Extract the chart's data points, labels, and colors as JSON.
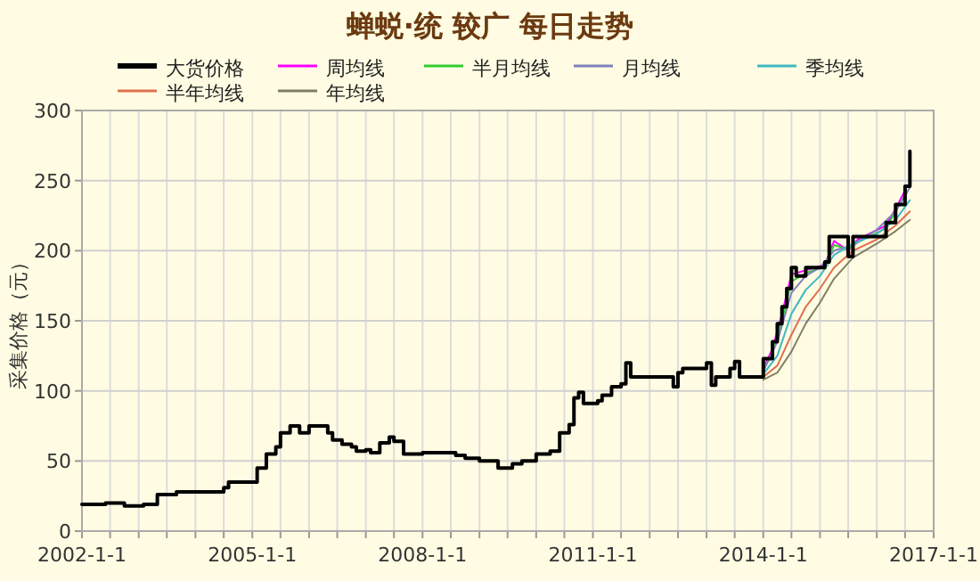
{
  "chart_data": {
    "type": "line",
    "title": "蝉蜕·统 较广 每日走势",
    "ylabel": "采集价格（元）",
    "xlim": [
      "2002-01-01",
      "2017-01-01"
    ],
    "xticks": [
      {
        "value": "2002-01-01",
        "label": "2002-1-1"
      },
      {
        "value": "2002-07-01",
        "label": null
      },
      {
        "value": "2003-01-01",
        "label": null
      },
      {
        "value": "2003-07-01",
        "label": null
      },
      {
        "value": "2004-01-01",
        "label": null
      },
      {
        "value": "2004-07-01",
        "label": null
      },
      {
        "value": "2005-01-01",
        "label": "2005-1-1"
      },
      {
        "value": "2005-07-01",
        "label": null
      },
      {
        "value": "2006-01-01",
        "label": null
      },
      {
        "value": "2006-07-01",
        "label": null
      },
      {
        "value": "2007-01-01",
        "label": null
      },
      {
        "value": "2007-07-01",
        "label": null
      },
      {
        "value": "2008-01-01",
        "label": "2008-1-1"
      },
      {
        "value": "2008-07-01",
        "label": null
      },
      {
        "value": "2009-01-01",
        "label": null
      },
      {
        "value": "2009-07-01",
        "label": null
      },
      {
        "value": "2010-01-01",
        "label": null
      },
      {
        "value": "2010-07-01",
        "label": null
      },
      {
        "value": "2011-01-01",
        "label": "2011-1-1"
      },
      {
        "value": "2011-07-01",
        "label": null
      },
      {
        "value": "2012-01-01",
        "label": null
      },
      {
        "value": "2012-07-01",
        "label": null
      },
      {
        "value": "2013-01-01",
        "label": null
      },
      {
        "value": "2013-07-01",
        "label": null
      },
      {
        "value": "2014-01-01",
        "label": "2014-1-1"
      },
      {
        "value": "2014-07-01",
        "label": null
      },
      {
        "value": "2015-01-01",
        "label": null
      },
      {
        "value": "2015-07-01",
        "label": null
      },
      {
        "value": "2016-01-01",
        "label": null
      },
      {
        "value": "2016-07-01",
        "label": null
      },
      {
        "value": "2017-01-01",
        "label": "2017-1-1"
      }
    ],
    "ylim": [
      0,
      300
    ],
    "yticks": [
      0,
      50,
      100,
      150,
      200,
      250,
      300
    ],
    "grid": true,
    "legend": "top",
    "series": [
      {
        "name": "大货价格",
        "type": "step",
        "color": "#000000",
        "x": [
          "2002-01",
          "2002-06",
          "2002-10",
          "2003-02",
          "2003-05",
          "2003-09",
          "2004-07",
          "2004-08",
          "2005-02",
          "2005-04",
          "2005-06",
          "2005-07",
          "2005-09",
          "2005-11",
          "2006-01",
          "2006-05",
          "2006-06",
          "2006-08",
          "2006-10",
          "2006-11",
          "2007-01",
          "2007-02",
          "2007-04",
          "2007-06",
          "2007-07",
          "2007-09",
          "2008-01",
          "2008-08",
          "2008-10",
          "2009-01",
          "2009-05",
          "2009-08",
          "2009-10",
          "2010-01",
          "2010-04",
          "2010-06",
          "2010-08",
          "2010-09",
          "2010-10",
          "2010-11",
          "2011-02",
          "2011-03",
          "2011-05",
          "2011-07",
          "2011-08",
          "2011-09",
          "2012-06",
          "2012-07",
          "2012-08",
          "2013-01",
          "2013-02",
          "2013-03",
          "2013-06",
          "2013-07",
          "2013-08",
          "2014-01",
          "2014-03",
          "2014-04",
          "2014-05",
          "2014-06",
          "2014-07",
          "2014-08",
          "2014-10",
          "2015-02",
          "2015-03",
          "2015-07",
          "2015-08",
          "2016-03",
          "2016-05",
          "2016-07",
          "2016-08"
        ],
        "values": [
          19,
          20,
          18,
          19,
          26,
          28,
          31,
          35,
          45,
          55,
          60,
          70,
          75,
          70,
          75,
          70,
          65,
          62,
          60,
          57,
          58,
          56,
          63,
          67,
          64,
          55,
          56,
          54,
          52,
          50,
          45,
          48,
          50,
          55,
          57,
          70,
          76,
          95,
          99,
          91,
          93,
          97,
          103,
          105,
          120,
          110,
          103,
          113,
          116,
          120,
          104,
          110,
          116,
          121,
          110,
          123,
          135,
          148,
          160,
          173,
          188,
          182,
          188,
          192,
          210,
          196,
          210,
          220,
          233,
          246,
          271
        ]
      },
      {
        "name": "周均线",
        "type": "line",
        "color": "#ff00ff",
        "x": [
          "2014-01",
          "2014-03",
          "2014-05",
          "2014-07",
          "2014-10",
          "2015-02",
          "2015-04",
          "2015-07",
          "2015-09",
          "2016-03",
          "2016-05",
          "2016-07"
        ],
        "values": [
          116,
          130,
          155,
          183,
          186,
          190,
          207,
          200,
          208,
          218,
          230,
          243
        ]
      },
      {
        "name": "半月均线",
        "type": "line",
        "color": "#33cc33",
        "x": [
          "2014-01",
          "2014-03",
          "2014-05",
          "2014-07",
          "2014-10",
          "2015-02",
          "2015-04",
          "2015-07",
          "2015-09",
          "2016-03",
          "2016-05",
          "2016-07"
        ],
        "values": [
          115,
          127,
          150,
          178,
          184,
          189,
          204,
          201,
          206,
          216,
          228,
          240
        ]
      },
      {
        "name": "月均线",
        "type": "line",
        "color": "#8080c0",
        "x": [
          "2014-01",
          "2014-04",
          "2014-07",
          "2014-10",
          "2015-01",
          "2015-04",
          "2015-08",
          "2016-01",
          "2016-05",
          "2016-08"
        ],
        "values": [
          114,
          135,
          170,
          182,
          188,
          200,
          204,
          215,
          228,
          245
        ]
      },
      {
        "name": "季均线",
        "type": "line",
        "color": "#40b8c0",
        "x": [
          "2014-01",
          "2014-04",
          "2014-07",
          "2014-10",
          "2015-01",
          "2015-04",
          "2015-08",
          "2016-01",
          "2016-05",
          "2016-08"
        ],
        "values": [
          112,
          125,
          155,
          172,
          182,
          197,
          205,
          212,
          222,
          236
        ]
      },
      {
        "name": "半年均线",
        "type": "line",
        "color": "#e07050",
        "x": [
          "2014-01",
          "2014-04",
          "2014-07",
          "2014-10",
          "2015-01",
          "2015-04",
          "2015-08",
          "2016-01",
          "2016-05",
          "2016-08"
        ],
        "values": [
          110,
          118,
          140,
          160,
          173,
          188,
          200,
          208,
          218,
          228
        ]
      },
      {
        "name": "年均线",
        "type": "line",
        "color": "#808060",
        "x": [
          "2014-01",
          "2014-04",
          "2014-07",
          "2014-10",
          "2015-01",
          "2015-04",
          "2015-08",
          "2016-01",
          "2016-05",
          "2016-08"
        ],
        "values": [
          108,
          113,
          128,
          148,
          163,
          180,
          195,
          205,
          214,
          222
        ]
      }
    ]
  }
}
